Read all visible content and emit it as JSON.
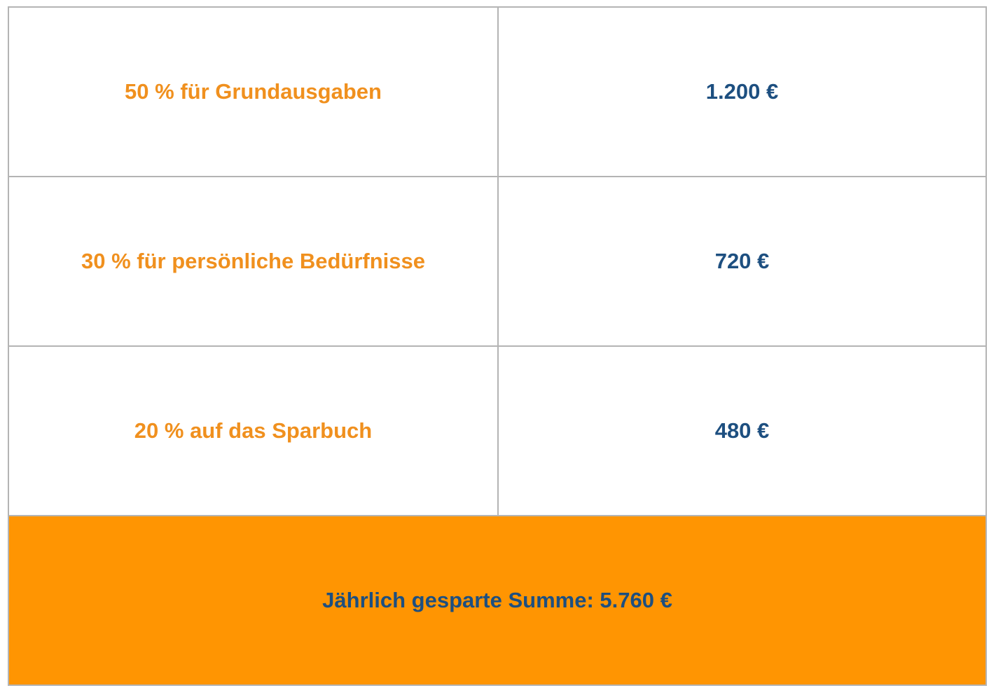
{
  "colors": {
    "label_text": "#f0901e",
    "value_text": "#1d4f80",
    "summary_background": "#ff9502",
    "border": "#b4b4b4"
  },
  "rows": [
    {
      "label": "50 % für Grundausgaben",
      "value": "1.200 €"
    },
    {
      "label": "30 % für persönliche Bedürfnisse",
      "value": "720 €"
    },
    {
      "label": "20 % auf das Sparbuch",
      "value": "480 €"
    }
  ],
  "summary": {
    "text": "Jährlich gesparte Summe: 5.760 €"
  }
}
